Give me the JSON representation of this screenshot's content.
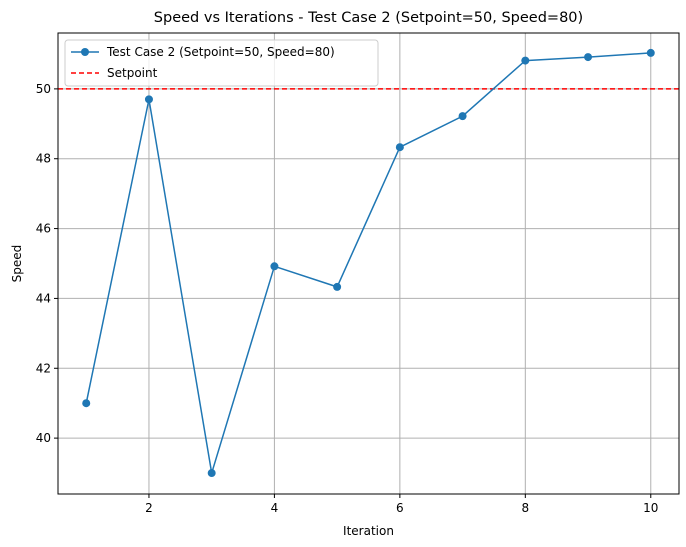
{
  "chart_data": {
    "type": "line",
    "title": "Speed vs Iterations - Test Case 2 (Setpoint=50, Speed=80)",
    "xlabel": "Iteration",
    "ylabel": "Speed",
    "xlim": [
      0.55,
      10.45
    ],
    "ylim": [
      38.4,
      51.6
    ],
    "xticks": [
      2,
      4,
      6,
      8,
      10
    ],
    "yticks": [
      40,
      42,
      44,
      46,
      48,
      50
    ],
    "grid": true,
    "legend_position": "top-left",
    "series": [
      {
        "name": "Test Case 2 (Setpoint=50, Speed=80)",
        "color": "#1f77b4",
        "marker": "circle",
        "x": [
          1,
          2,
          3,
          4,
          5,
          6,
          7,
          8,
          9,
          10
        ],
        "values": [
          41.0,
          49.7,
          39.0,
          44.92,
          44.33,
          48.33,
          49.22,
          50.81,
          50.91,
          51.03
        ]
      }
    ],
    "reference_lines": [
      {
        "name": "Setpoint",
        "y": 50,
        "color": "#ff0000",
        "style": "dashed"
      }
    ]
  }
}
